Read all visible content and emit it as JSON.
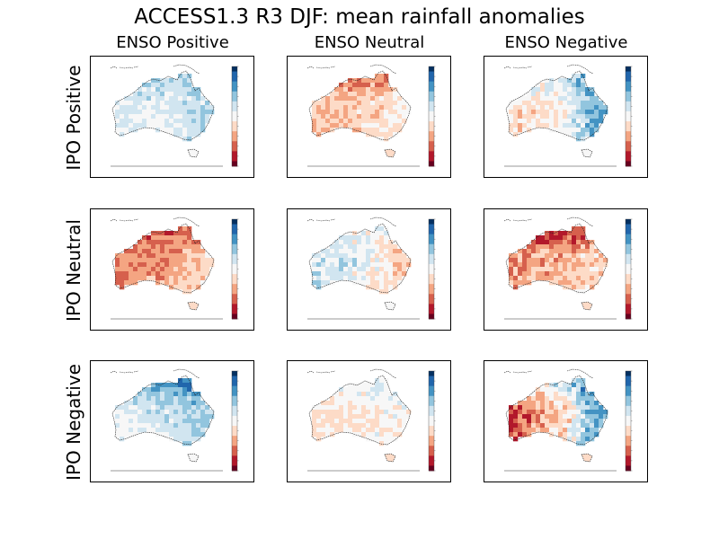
{
  "title": "ACCESS1.3 R3 DJF: mean rainfall anomalies",
  "columns": [
    "ENSO Positive",
    "ENSO Neutral",
    "ENSO Negative"
  ],
  "rows": [
    "IPO Positive",
    "IPO Neutral",
    "IPO Negative"
  ],
  "colormap": {
    "name": "red-blue diverging",
    "colors": [
      "#67001f",
      "#b2182b",
      "#d6604d",
      "#f4a582",
      "#fddbc7",
      "#f7f7f7",
      "#d1e5f0",
      "#92c5de",
      "#4393c3",
      "#2166ac",
      "#053061"
    ]
  },
  "chart_data": {
    "type": "heatmap",
    "title": "ACCESS1.3 R3 DJF: mean rainfall anomalies",
    "columns": [
      "ENSO Positive",
      "ENSO Neutral",
      "ENSO Negative"
    ],
    "rows": [
      "IPO Positive",
      "IPO Neutral",
      "IPO Negative"
    ],
    "scale_range": [
      -1,
      1
    ],
    "patterns": [
      {
        "row": "IPO Positive",
        "column": "ENSO Positive",
        "base": 0.12,
        "north": 0.2,
        "east": 0.15,
        "west": 0.0,
        "center": 0.05,
        "noise": 0.15
      },
      {
        "row": "IPO Positive",
        "column": "ENSO Neutral",
        "base": -0.15,
        "north": -0.55,
        "east": 0.1,
        "west": -0.15,
        "center": -0.1,
        "noise": 0.15
      },
      {
        "row": "IPO Positive",
        "column": "ENSO Negative",
        "base": -0.05,
        "north": 0.3,
        "east": 0.75,
        "west": -0.15,
        "center": -0.05,
        "noise": 0.2
      },
      {
        "row": "IPO Neutral",
        "column": "ENSO Positive",
        "base": -0.3,
        "north": -0.45,
        "east": 0.1,
        "west": -0.25,
        "center": -0.2,
        "noise": 0.15
      },
      {
        "row": "IPO Neutral",
        "column": "ENSO Neutral",
        "base": -0.05,
        "north": 0.15,
        "east": -0.25,
        "west": 0.3,
        "center": 0.2,
        "noise": 0.2
      },
      {
        "row": "IPO Neutral",
        "column": "ENSO Negative",
        "base": -0.25,
        "north": -0.7,
        "east": 0.05,
        "west": -0.2,
        "center": -0.1,
        "noise": 0.2
      },
      {
        "row": "IPO Negative",
        "column": "ENSO Positive",
        "base": 0.1,
        "north": 0.65,
        "east": 0.35,
        "west": 0.0,
        "center": 0.15,
        "noise": 0.15
      },
      {
        "row": "IPO Negative",
        "column": "ENSO Neutral",
        "base": -0.05,
        "north": 0.2,
        "east": 0.05,
        "west": -0.1,
        "center": -0.05,
        "noise": 0.15
      },
      {
        "row": "IPO Negative",
        "column": "ENSO Negative",
        "base": -0.15,
        "north": 0.45,
        "east": 0.95,
        "west": -0.55,
        "center": -0.15,
        "noise": 0.25
      }
    ]
  }
}
